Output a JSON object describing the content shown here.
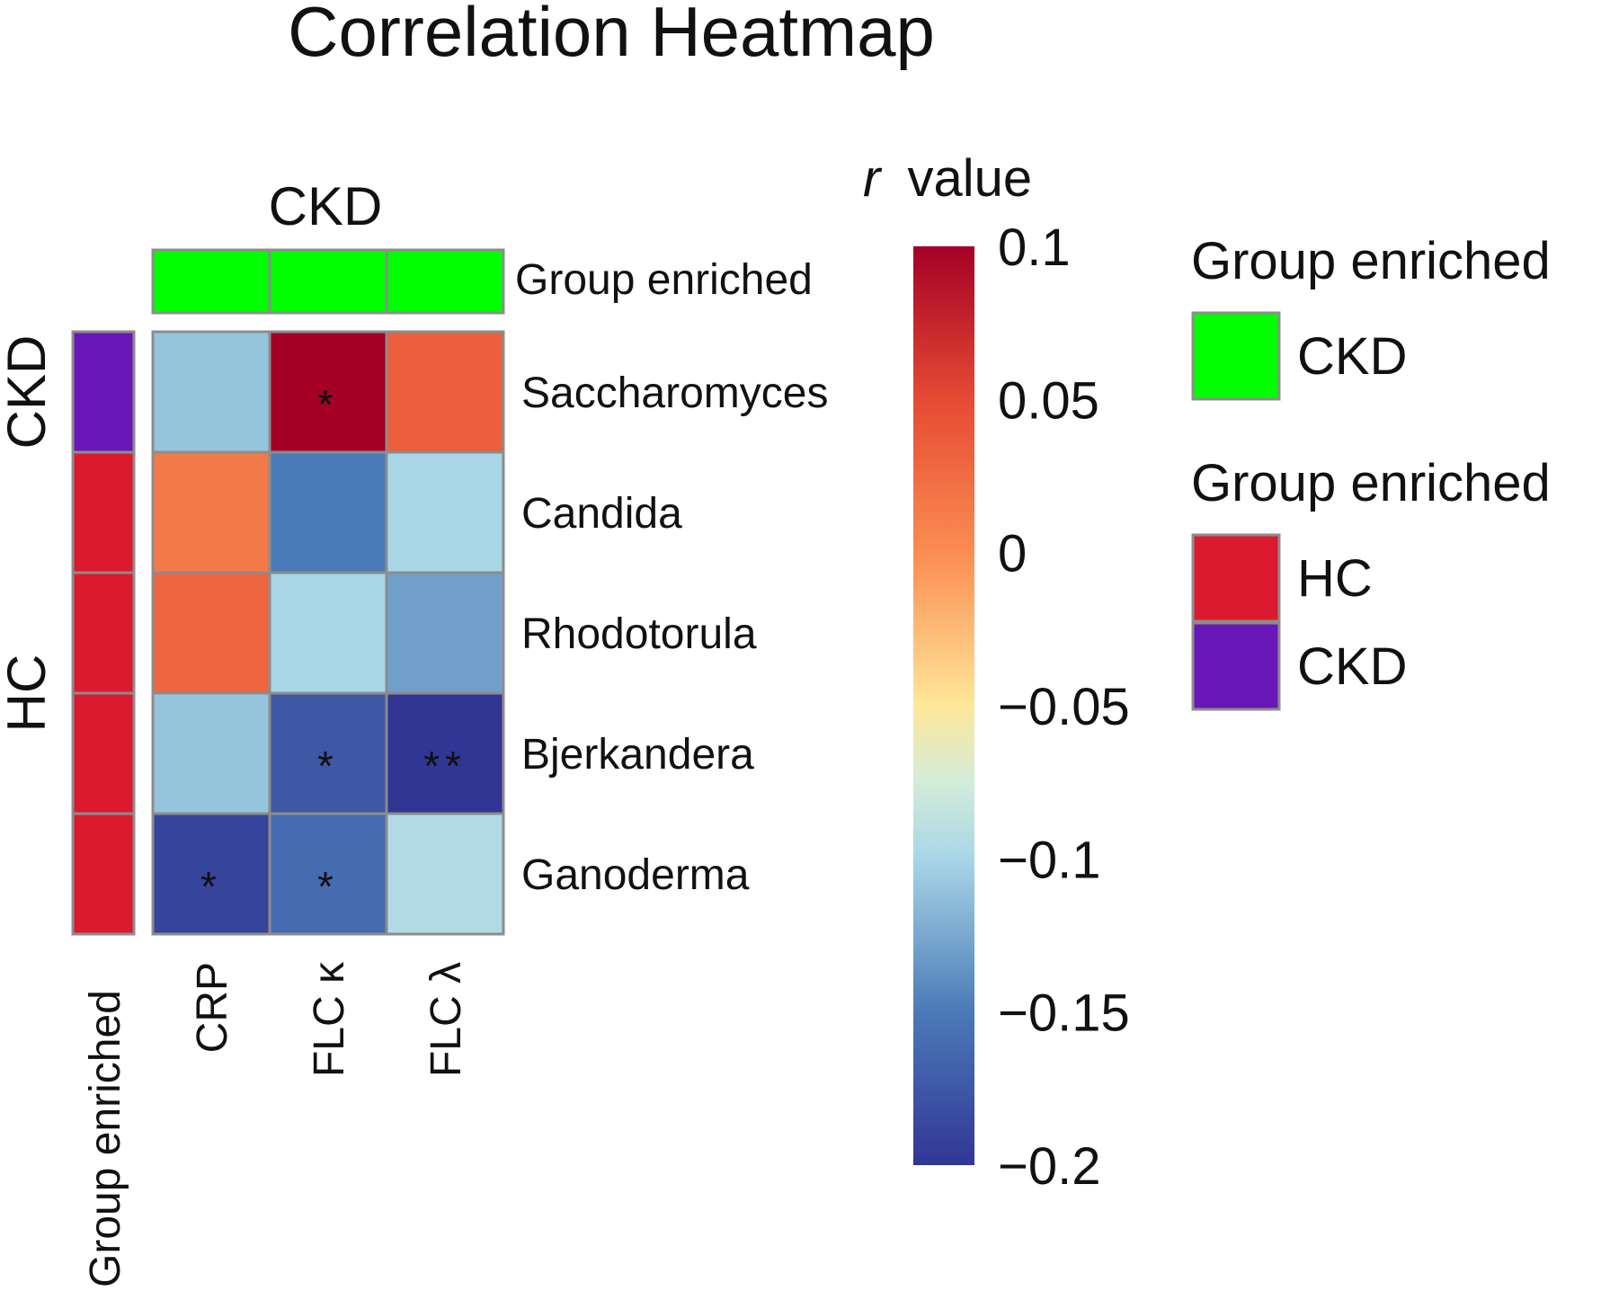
{
  "chart_data": {
    "type": "heatmap",
    "title": "Correlation Heatmap",
    "column_group_label": "CKD",
    "columns": [
      "CRP",
      "FLC κ",
      "FLC λ"
    ],
    "rows": [
      "Saccharomyces",
      "Candida",
      "Rhodotorula",
      "Bjerkandera",
      "Ganoderma"
    ],
    "values": [
      [
        -0.11,
        0.1,
        0.035
      ],
      [
        0.015,
        -0.15,
        -0.1
      ],
      [
        0.03,
        -0.1,
        -0.13
      ],
      [
        -0.11,
        -0.175,
        -0.2
      ],
      [
        -0.19,
        -0.16,
        -0.095
      ]
    ],
    "significance": [
      [
        "",
        "*",
        ""
      ],
      [
        "",
        "",
        ""
      ],
      [
        "",
        "",
        ""
      ],
      [
        "",
        "*",
        "**"
      ],
      [
        "*",
        "*",
        ""
      ]
    ],
    "column_annotation": {
      "label": "Group enriched",
      "values": [
        "CKD",
        "CKD",
        "CKD"
      ]
    },
    "row_annotation": {
      "label": "Group enriched",
      "values": [
        "CKD",
        "HC",
        "HC",
        "HC",
        "HC"
      ],
      "row_group_labels": [
        {
          "label": "CKD",
          "rows": [
            0
          ]
        },
        {
          "label": "HC",
          "rows": [
            1,
            2,
            3,
            4
          ]
        }
      ]
    },
    "colorbar": {
      "title_italic": "r",
      "title_rest": "value",
      "range": [
        -0.2,
        0.1
      ],
      "ticks": [
        0.1,
        0.05,
        0,
        -0.05,
        -0.1,
        -0.15,
        -0.2
      ],
      "tick_labels": [
        "0.1",
        "0.05",
        "0",
        "−0.05",
        "−0.1",
        "−0.15",
        "−0.2"
      ],
      "stops": [
        {
          "v": -0.2,
          "color": "#313695"
        },
        {
          "v": -0.15,
          "color": "#4a7ab7"
        },
        {
          "v": -0.1,
          "color": "#a8d6e7"
        },
        {
          "v": -0.075,
          "color": "#d3ecd9"
        },
        {
          "v": -0.05,
          "color": "#fee79a"
        },
        {
          "v": 0,
          "color": "#fb8d52"
        },
        {
          "v": 0.05,
          "color": "#e54a33"
        },
        {
          "v": 0.1,
          "color": "#a50026"
        }
      ]
    },
    "legends": [
      {
        "title": "Group enriched",
        "items": [
          {
            "label": "CKD",
            "color": "#00ff00"
          }
        ]
      },
      {
        "title": "Group enriched",
        "items": [
          {
            "label": "HC",
            "color": "#dc1a2f"
          },
          {
            "label": "CKD",
            "color": "#6a17b8"
          }
        ]
      }
    ]
  }
}
